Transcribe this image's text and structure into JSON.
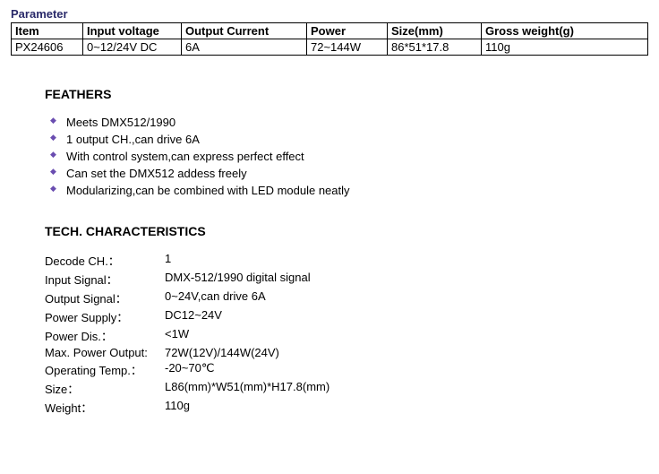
{
  "paramTitle": "Parameter",
  "paramTable": {
    "headers": [
      "Item",
      "Input voltage",
      "Output Current",
      "Power",
      "Size(mm)",
      "Gross weight(g)"
    ],
    "row": [
      "PX24606",
      "0~12/24V DC",
      "6A",
      "72~144W",
      "86*51*17.8",
      "110g"
    ],
    "colWidths": [
      "80px",
      "110px",
      "140px",
      "90px",
      "105px",
      "auto"
    ]
  },
  "feathersHeading": "FEATHERS",
  "feathers": [
    "Meets DMX512/1990",
    "1 output CH.,can drive 6A",
    "With control system,can express perfect effect",
    "Can set the DMX512 addess freely",
    "Modularizing,can be combined with LED module neatly"
  ],
  "techHeading": "TECH. CHARACTERISTICS",
  "tech": [
    {
      "label": "Decode CH.：",
      "value": "1"
    },
    {
      "label": "Input Signal：",
      "value": "DMX-512/1990 digital signal"
    },
    {
      "label": "Output Signal：",
      "value": "0~24V,can drive 6A"
    },
    {
      "label": "Power Supply：",
      "value": "DC12~24V"
    },
    {
      "label": "Power Dis.：",
      "value": "<1W"
    },
    {
      "label": "Max. Power Output:",
      "value": "72W(12V)/144W(24V)"
    },
    {
      "label": "Operating Temp.：",
      "value": "-20~70℃"
    },
    {
      "label": "Size：",
      "value": "L86(mm)*W51(mm)*H17.8(mm)"
    },
    {
      "label": "Weight：",
      "value": "110g"
    }
  ],
  "colors": {
    "paramTitle": "#2a2a6a",
    "bullet": "#6a4db0",
    "text": "#000000",
    "background": "#ffffff"
  }
}
